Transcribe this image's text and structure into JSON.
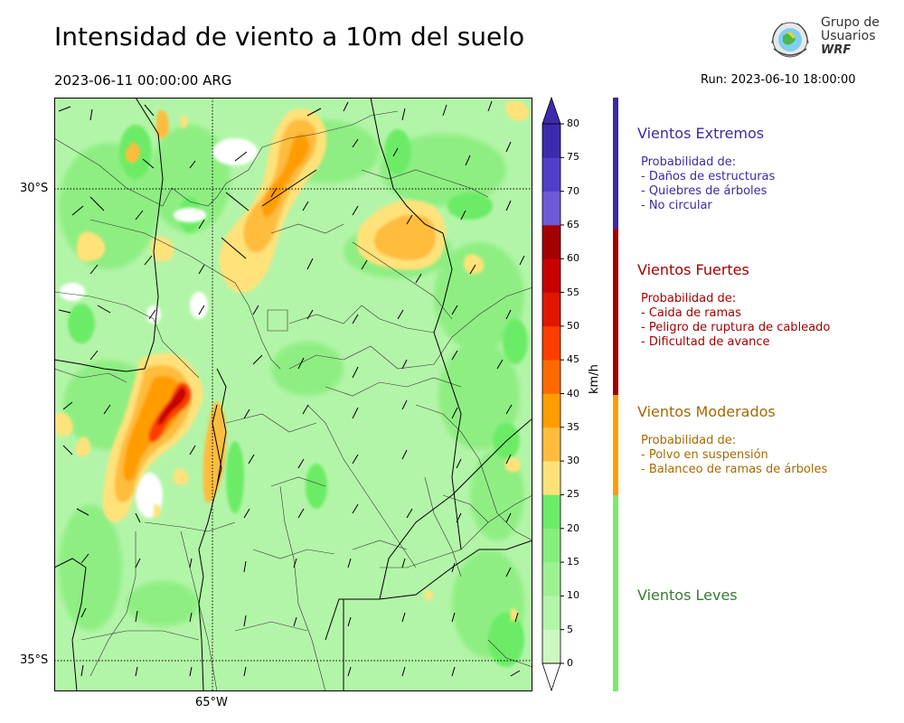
{
  "header": {
    "title": "Intensidad de viento a 10m del suelo",
    "valid_time": "2023-06-11 00:00:00 ARG",
    "run": "Run: 2023-06-10 18:00:00"
  },
  "logo": {
    "line1": "Grupo de",
    "line2": "Usuarios",
    "line3": "WRF"
  },
  "map": {
    "lat_labels": [
      "30°S",
      "35°S"
    ],
    "lon_labels": [
      "65°W"
    ],
    "colors": {
      "land": "#b3f5a8",
      "grid": "#000000"
    }
  },
  "colorbar": {
    "unit": "km/h",
    "ticks": [
      "0",
      "5",
      "10",
      "15",
      "20",
      "25",
      "30",
      "35",
      "40",
      "45",
      "50",
      "55",
      "60",
      "65",
      "70",
      "75",
      "80"
    ],
    "colors": [
      "#ffffff",
      "#cdf7c0",
      "#b3f5a8",
      "#9ef193",
      "#86ef7c",
      "#6cec66",
      "#ffe27a",
      "#ffbc3d",
      "#ff9c00",
      "#ff6a00",
      "#ff3c00",
      "#e01600",
      "#c80000",
      "#a50000",
      "#6f5ad6",
      "#5040c9",
      "#3c2aaf"
    ]
  },
  "legend": {
    "categories": [
      {
        "name": "Vientos Extremos",
        "color": "#3b2aa6",
        "intro": "Probabilidad de:",
        "items": [
          "- Daños de estructuras",
          "- Quiebres de árboles",
          "- No circular"
        ]
      },
      {
        "name": "Vientos Fuertes",
        "color": "#a40000",
        "intro": "Probabilidad de:",
        "items": [
          "- Caida de ramas",
          "- Peligro de ruptura de cableado",
          "- Dificultad de avance"
        ]
      },
      {
        "name": "Vientos Moderados",
        "color": "#a86800",
        "intro": "Probabilidad de:",
        "items": [
          "- Polvo en suspensión",
          "- Balanceo de ramas de árboles"
        ]
      },
      {
        "name": "Vientos Leves",
        "color": "#3a7a30",
        "intro": "",
        "items": []
      }
    ],
    "bar_colors": [
      "#3b2aa6",
      "#a40000",
      "#ff9c00",
      "#79ea6c"
    ]
  }
}
